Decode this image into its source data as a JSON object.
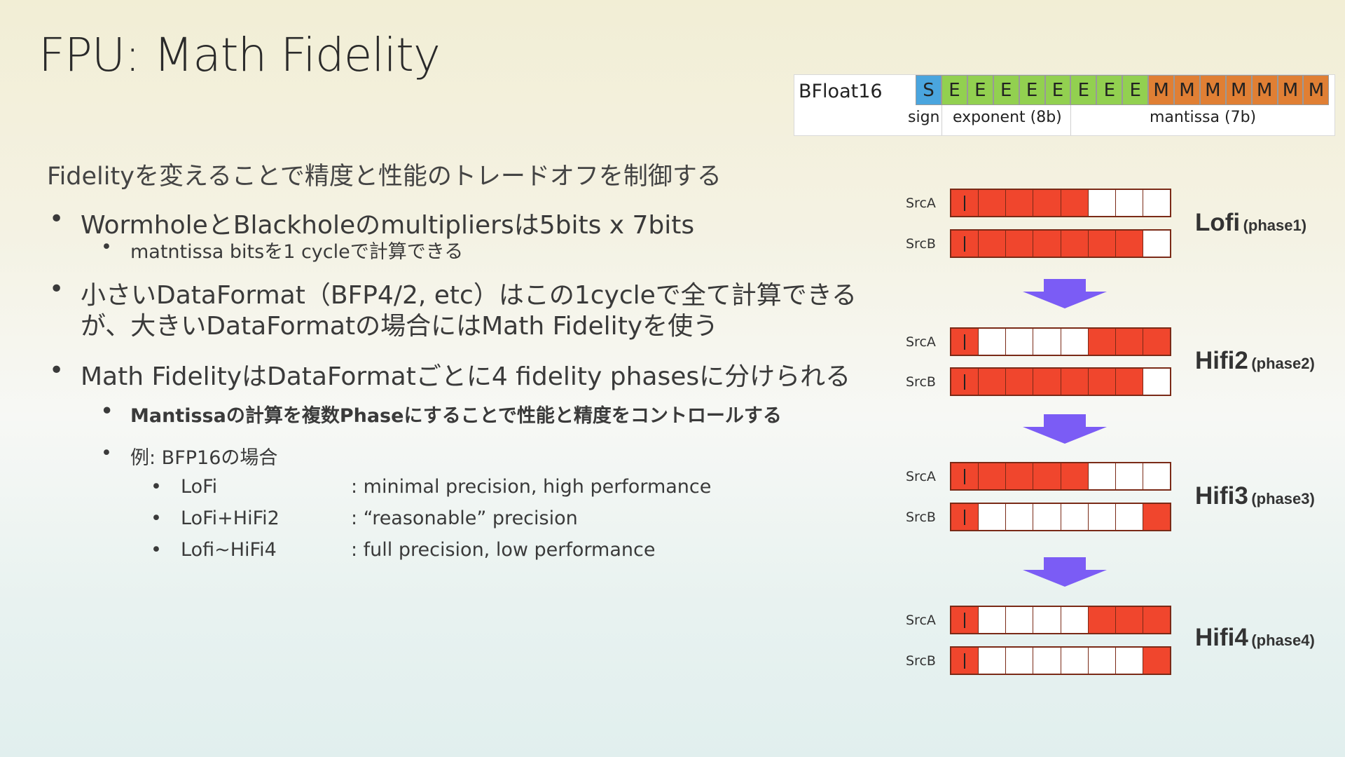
{
  "title": "FPU: Math Fidelity",
  "lead": "Fidelityを変えることで精度と性能のトレードオフを制御する",
  "bullets": {
    "b1": "WormholeとBlackholeのmultipliersは5bits x 7bits",
    "b1_sub": "matntissa bitsを1 cycleで計算できる",
    "b2_line1": "小さいDataFormat（BFP4/2, etc）はこの1cycleで全て計算できる",
    "b2_line2": "が、大きいDataFormatの場合にはMath Fidelityを使う",
    "b3": "Math FidelityはDataFormatごとに4 fidelity phasesに分けられる",
    "b3_sub1": "Mantissaの計算を複数Phaseにすることで性能と精度をコントロールする",
    "b3_sub2": "例: BFP16の場合",
    "examples": [
      {
        "name": "LoFi",
        "desc": ": minimal precision, high performance"
      },
      {
        "name": "LoFi+HiFi2",
        "desc": ": “reasonable” precision"
      },
      {
        "name": "Lofi~HiFi4",
        "desc": ": full precision, low performance"
      }
    ],
    "dot": "•"
  },
  "bfloat": {
    "label": "BFloat16",
    "bits": [
      "S",
      "E",
      "E",
      "E",
      "E",
      "E",
      "E",
      "E",
      "E",
      "M",
      "M",
      "M",
      "M",
      "M",
      "M",
      "M"
    ],
    "sign": "sign",
    "exponent": "exponent (8b)",
    "mantissa": "mantissa (7b)",
    "colors": {
      "sign": "#4aa5de",
      "exponent": "#92d050",
      "mantissa": "#e07f34"
    }
  },
  "phases": [
    {
      "name": "Lofi",
      "sub": "(phase1)",
      "srca_label": "SrcA",
      "srcb_label": "SrcB",
      "srca": [
        1,
        1,
        1,
        1,
        1,
        0,
        0,
        0
      ],
      "srcb": [
        1,
        1,
        1,
        1,
        1,
        1,
        1,
        0
      ]
    },
    {
      "name": "Hifi2",
      "sub": "(phase2)",
      "srca_label": "SrcA",
      "srcb_label": "SrcB",
      "srca": [
        1,
        0,
        0,
        0,
        0,
        1,
        1,
        1
      ],
      "srcb": [
        1,
        1,
        1,
        1,
        1,
        1,
        1,
        0
      ]
    },
    {
      "name": "Hifi3",
      "sub": "(phase3)",
      "srca_label": "SrcA",
      "srcb_label": "SrcB",
      "srca": [
        1,
        1,
        1,
        1,
        1,
        0,
        0,
        0
      ],
      "srcb": [
        1,
        0,
        0,
        0,
        0,
        0,
        0,
        1
      ]
    },
    {
      "name": "Hifi4",
      "sub": "(phase4)",
      "srca_label": "SrcA",
      "srcb_label": "SrcB",
      "srca": [
        1,
        0,
        0,
        0,
        0,
        1,
        1,
        1
      ],
      "srcb": [
        1,
        0,
        0,
        0,
        0,
        0,
        0,
        1
      ]
    }
  ],
  "colors": {
    "active_bit": "#f0462d",
    "arrow": "#7b5cf5"
  }
}
